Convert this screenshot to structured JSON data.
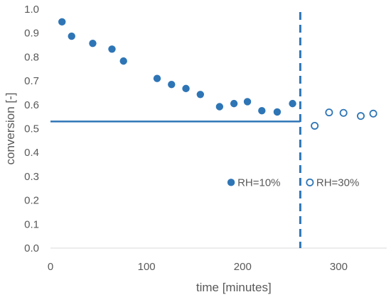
{
  "chart_data": {
    "type": "scatter",
    "xlabel": "time [minutes]",
    "ylabel": "conversion [-]",
    "xlim": [
      0,
      350
    ],
    "ylim": [
      0.0,
      1.0
    ],
    "xticks": [
      "0",
      "100",
      "200",
      "300"
    ],
    "yticks": [
      "0.0",
      "0.1",
      "0.2",
      "0.3",
      "0.4",
      "0.5",
      "0.6",
      "0.7",
      "0.8",
      "0.9",
      "1.0"
    ],
    "grid": false,
    "colors": {
      "series": "#2e75b6",
      "axis": "#d9d9d9",
      "text": "#595959"
    },
    "series": [
      {
        "name": "RH=10%",
        "marker": "filled-circle",
        "x": [
          12,
          22,
          44,
          64,
          76,
          111,
          126,
          141,
          156,
          176,
          191,
          205,
          220,
          236,
          252
        ],
        "y": [
          0.947,
          0.887,
          0.857,
          0.833,
          0.783,
          0.71,
          0.685,
          0.668,
          0.643,
          0.592,
          0.605,
          0.613,
          0.575,
          0.57,
          0.605
        ]
      },
      {
        "name": "RH=30%",
        "marker": "open-circle",
        "x": [
          275,
          290,
          305,
          323,
          336
        ],
        "y": [
          0.512,
          0.568,
          0.566,
          0.553,
          0.563
        ]
      }
    ],
    "reference_lines": [
      {
        "orientation": "horizontal",
        "style": "solid",
        "y": 0.53,
        "x_range": [
          0,
          260
        ]
      },
      {
        "orientation": "vertical",
        "style": "dashed",
        "x": 260
      }
    ]
  }
}
